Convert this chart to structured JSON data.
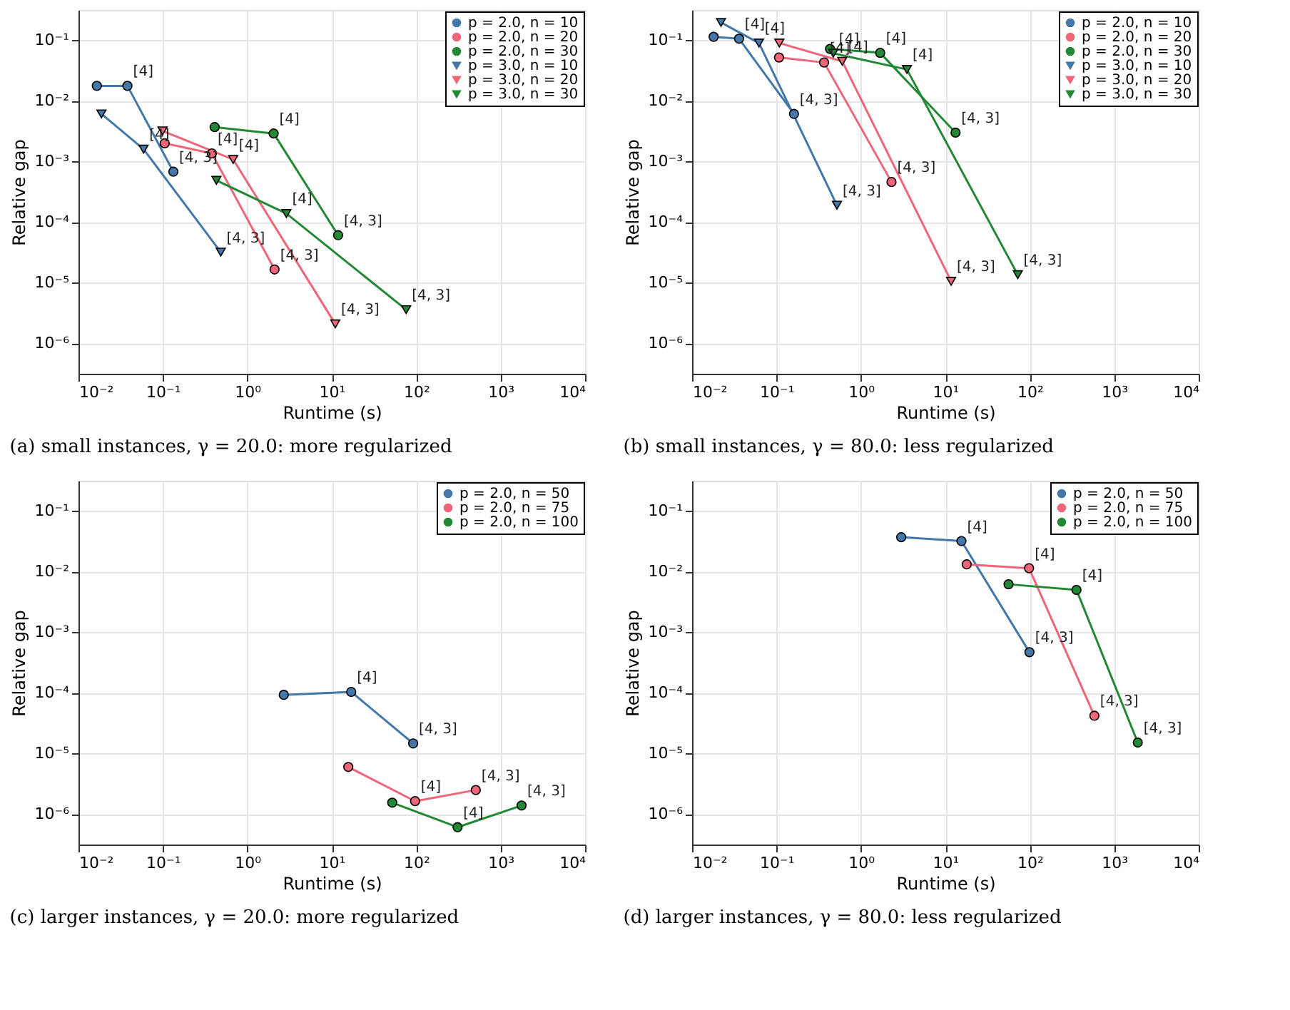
{
  "chart_data": [
    {
      "type": "line",
      "title": "(a) small instances, γ = 20.0: more regularized",
      "xlabel": "Runtime (s)",
      "ylabel": "Relative gap",
      "log": "xy",
      "grid": true,
      "legend": "top right",
      "xlim": [
        0.01,
        10000
      ],
      "ylim": [
        3.16e-07,
        0.316
      ],
      "xticks": [
        {
          "value": 0.01,
          "label": "10⁻²"
        },
        {
          "value": 0.1,
          "label": "10⁻¹"
        },
        {
          "value": 1,
          "label": "10⁰"
        },
        {
          "value": 10,
          "label": "10¹"
        },
        {
          "value": 100,
          "label": "10²"
        },
        {
          "value": 1000,
          "label": "10³"
        },
        {
          "value": 10000,
          "label": "10⁴"
        }
      ],
      "yticks": [
        {
          "value": 1e-06,
          "label": "10⁻⁶"
        },
        {
          "value": 1e-05,
          "label": "10⁻⁵"
        },
        {
          "value": 0.0001,
          "label": "10⁻⁴"
        },
        {
          "value": 0.001,
          "label": "10⁻³"
        },
        {
          "value": 0.01,
          "label": "10⁻²"
        },
        {
          "value": 0.1,
          "label": "10⁻¹"
        }
      ],
      "series": [
        {
          "name": "p = 2.0, n = 10",
          "color": "#4477aa",
          "marker": "circle",
          "x": [
            0.0165,
            0.038,
            0.133
          ],
          "values": [
            0.0177,
            0.0177,
            0.00068
          ]
        },
        {
          "name": "p = 2.0, n = 20",
          "color": "#ee6677",
          "marker": "circle",
          "x": [
            0.105,
            0.38,
            2.1
          ],
          "values": [
            0.002,
            0.00136,
            1.66e-05
          ]
        },
        {
          "name": "p = 2.0, n = 30",
          "color": "#228833",
          "marker": "circle",
          "x": [
            0.41,
            2.05,
            11.9
          ],
          "values": [
            0.0037,
            0.0029,
            6.1e-05
          ]
        },
        {
          "name": "p = 3.0, n = 10",
          "color": "#4477aa",
          "marker": "triangle",
          "x": [
            0.0187,
            0.059,
            0.485
          ],
          "values": [
            0.0061,
            0.0016,
            3.2e-05
          ]
        },
        {
          "name": "p = 3.0, n = 20",
          "color": "#ee6677",
          "marker": "triangle",
          "x": [
            0.099,
            0.68,
            11
          ],
          "values": [
            0.0032,
            0.00108,
            2.1e-06
          ]
        },
        {
          "name": "p = 3.0, n = 30",
          "color": "#228833",
          "marker": "triangle",
          "x": [
            0.43,
            2.9,
            76
          ],
          "values": [
            0.00049,
            0.000139,
            3.6e-06
          ]
        }
      ],
      "annotations": [
        {
          "text": "[4]",
          "x": 0.038,
          "y": 0.0177
        },
        {
          "text": "[4, 3]",
          "x": 0.133,
          "y": 0.00068
        },
        {
          "text": "[4]",
          "x": 0.38,
          "y": 0.00136
        },
        {
          "text": "[4, 3]",
          "x": 2.1,
          "y": 1.66e-05
        },
        {
          "text": "[4]",
          "x": 2.05,
          "y": 0.0029
        },
        {
          "text": "[4, 3]",
          "x": 11.9,
          "y": 6.1e-05
        },
        {
          "text": "[4]",
          "x": 0.059,
          "y": 0.0016
        },
        {
          "text": "[4, 3]",
          "x": 0.485,
          "y": 3.2e-05
        },
        {
          "text": "[4]",
          "x": 0.68,
          "y": 0.00108
        },
        {
          "text": "[4, 3]",
          "x": 11,
          "y": 2.1e-06
        },
        {
          "text": "[4]",
          "x": 2.9,
          "y": 0.000139
        },
        {
          "text": "[4, 3]",
          "x": 76,
          "y": 3.6e-06
        }
      ]
    },
    {
      "type": "line",
      "title": "(b) small instances, γ = 80.0: less regularized",
      "xlabel": "Runtime (s)",
      "ylabel": "Relative gap",
      "log": "xy",
      "grid": true,
      "legend": "top right",
      "xlim": [
        0.01,
        10000
      ],
      "ylim": [
        3.16e-07,
        0.316
      ],
      "xticks": [
        {
          "value": 0.01,
          "label": "10⁻²"
        },
        {
          "value": 0.1,
          "label": "10⁻¹"
        },
        {
          "value": 1,
          "label": "10⁰"
        },
        {
          "value": 10,
          "label": "10¹"
        },
        {
          "value": 100,
          "label": "10²"
        },
        {
          "value": 1000,
          "label": "10³"
        },
        {
          "value": 10000,
          "label": "10⁴"
        }
      ],
      "yticks": [
        {
          "value": 1e-06,
          "label": "10⁻⁶"
        },
        {
          "value": 1e-05,
          "label": "10⁻⁵"
        },
        {
          "value": 0.0001,
          "label": "10⁻⁴"
        },
        {
          "value": 0.001,
          "label": "10⁻³"
        },
        {
          "value": 0.01,
          "label": "10⁻²"
        },
        {
          "value": 0.1,
          "label": "10⁻¹"
        }
      ],
      "series": [
        {
          "name": "p = 2.0, n = 10",
          "color": "#4477aa",
          "marker": "circle",
          "x": [
            0.018,
            0.036,
            0.161
          ],
          "values": [
            0.114,
            0.106,
            0.0061
          ]
        },
        {
          "name": "p = 2.0, n = 20",
          "color": "#ee6677",
          "marker": "circle",
          "x": [
            0.107,
            0.366,
            2.3
          ],
          "values": [
            0.052,
            0.043,
            0.00046
          ]
        },
        {
          "name": "p = 2.0, n = 30",
          "color": "#228833",
          "marker": "circle",
          "x": [
            0.43,
            1.69,
            13.2
          ],
          "values": [
            0.072,
            0.062,
            0.003
          ]
        },
        {
          "name": "p = 3.0, n = 10",
          "color": "#4477aa",
          "marker": "triangle",
          "x": [
            0.022,
            0.062,
            0.52
          ],
          "values": [
            0.197,
            0.09,
            0.00019
          ]
        },
        {
          "name": "p = 3.0, n = 20",
          "color": "#ee6677",
          "marker": "triangle",
          "x": [
            0.108,
            0.6,
            11.7
          ],
          "values": [
            0.09,
            0.045,
            1.06e-05
          ]
        },
        {
          "name": "p = 3.0, n = 30",
          "color": "#228833",
          "marker": "triangle",
          "x": [
            0.47,
            3.5,
            72
          ],
          "values": [
            0.061,
            0.033,
            1.36e-05
          ]
        }
      ],
      "annotations": [
        {
          "text": "[4]",
          "x": 0.036,
          "y": 0.106
        },
        {
          "text": "[4, 3]",
          "x": 0.161,
          "y": 0.0061
        },
        {
          "text": "[4]",
          "x": 0.366,
          "y": 0.043
        },
        {
          "text": "[4, 3]",
          "x": 2.3,
          "y": 0.00046
        },
        {
          "text": "[4]",
          "x": 1.69,
          "y": 0.062
        },
        {
          "text": "[4, 3]",
          "x": 13.2,
          "y": 0.003
        },
        {
          "text": "[4]",
          "x": 0.062,
          "y": 0.09
        },
        {
          "text": "[4, 3]",
          "x": 0.52,
          "y": 0.00019
        },
        {
          "text": "[4]",
          "x": 0.6,
          "y": 0.045
        },
        {
          "text": "[4, 3]",
          "x": 11.7,
          "y": 1.06e-05
        },
        {
          "text": "[4]",
          "x": 0.47,
          "y": 0.061
        },
        {
          "text": "[4]",
          "x": 3.5,
          "y": 0.033
        },
        {
          "text": "[4, 3]",
          "x": 72,
          "y": 1.36e-05
        }
      ]
    },
    {
      "type": "line",
      "title": "(c) larger instances, γ = 20.0: more regularized",
      "xlabel": "Runtime (s)",
      "ylabel": "Relative gap",
      "log": "xy",
      "grid": true,
      "legend": "top right",
      "xlim": [
        0.01,
        10000
      ],
      "ylim": [
        3.16e-07,
        0.316
      ],
      "xticks": [
        {
          "value": 0.01,
          "label": "10⁻²"
        },
        {
          "value": 0.1,
          "label": "10⁻¹"
        },
        {
          "value": 1,
          "label": "10⁰"
        },
        {
          "value": 10,
          "label": "10¹"
        },
        {
          "value": 100,
          "label": "10²"
        },
        {
          "value": 1000,
          "label": "10³"
        },
        {
          "value": 10000,
          "label": "10⁴"
        }
      ],
      "yticks": [
        {
          "value": 1e-06,
          "label": "10⁻⁶"
        },
        {
          "value": 1e-05,
          "label": "10⁻⁵"
        },
        {
          "value": 0.0001,
          "label": "10⁻⁴"
        },
        {
          "value": 0.001,
          "label": "10⁻³"
        },
        {
          "value": 0.01,
          "label": "10⁻²"
        },
        {
          "value": 0.1,
          "label": "10⁻¹"
        }
      ],
      "series": [
        {
          "name": "p = 2.0, n = 50",
          "color": "#4477aa",
          "marker": "circle",
          "x": [
            2.7,
            17,
            92
          ],
          "values": [
            9.3e-05,
            0.000104,
            1.47e-05
          ]
        },
        {
          "name": "p = 2.0, n = 75",
          "color": "#ee6677",
          "marker": "circle",
          "x": [
            15.7,
            97,
            508
          ],
          "values": [
            6e-06,
            1.64e-06,
            2.5e-06
          ]
        },
        {
          "name": "p = 2.0, n = 100",
          "color": "#228833",
          "marker": "circle",
          "x": [
            52,
            309,
            1770
          ],
          "values": [
            1.55e-06,
            6.1e-07,
            1.39e-06
          ]
        }
      ],
      "annotations": [
        {
          "text": "[4]",
          "x": 17,
          "y": 0.000104
        },
        {
          "text": "[4, 3]",
          "x": 92,
          "y": 1.47e-05
        },
        {
          "text": "[4]",
          "x": 97,
          "y": 1.64e-06
        },
        {
          "text": "[4, 3]",
          "x": 508,
          "y": 2.5e-06
        },
        {
          "text": "[4]",
          "x": 309,
          "y": 6.1e-07
        },
        {
          "text": "[4, 3]",
          "x": 1770,
          "y": 1.39e-06
        }
      ]
    },
    {
      "type": "line",
      "title": "(d) larger instances, γ = 80.0: less regularized",
      "xlabel": "Runtime (s)",
      "ylabel": "Relative gap",
      "log": "xy",
      "grid": true,
      "legend": "top right",
      "xlim": [
        0.01,
        10000
      ],
      "ylim": [
        3.16e-07,
        0.316
      ],
      "xticks": [
        {
          "value": 0.01,
          "label": "10⁻²"
        },
        {
          "value": 0.1,
          "label": "10⁻¹"
        },
        {
          "value": 1,
          "label": "10⁰"
        },
        {
          "value": 10,
          "label": "10¹"
        },
        {
          "value": 100,
          "label": "10²"
        },
        {
          "value": 1000,
          "label": "10³"
        },
        {
          "value": 10000,
          "label": "10⁴"
        }
      ],
      "yticks": [
        {
          "value": 1e-06,
          "label": "10⁻⁶"
        },
        {
          "value": 1e-05,
          "label": "10⁻⁵"
        },
        {
          "value": 0.0001,
          "label": "10⁻⁴"
        },
        {
          "value": 0.001,
          "label": "10⁻³"
        },
        {
          "value": 0.01,
          "label": "10⁻²"
        },
        {
          "value": 0.1,
          "label": "10⁻¹"
        }
      ],
      "series": [
        {
          "name": "p = 2.0, n = 50",
          "color": "#4477aa",
          "marker": "circle",
          "x": [
            3.0,
            15.5,
            99
          ],
          "values": [
            0.037,
            0.032,
            0.00047
          ]
        },
        {
          "name": "p = 2.0, n = 75",
          "color": "#ee6677",
          "marker": "circle",
          "x": [
            17.9,
            98,
            582
          ],
          "values": [
            0.0132,
            0.0114,
            4.2e-05
          ]
        },
        {
          "name": "p = 2.0, n = 100",
          "color": "#228833",
          "marker": "circle",
          "x": [
            56,
            357,
            1900
          ],
          "values": [
            0.0062,
            0.005,
            1.52e-05
          ]
        }
      ],
      "annotations": [
        {
          "text": "[4]",
          "x": 15.5,
          "y": 0.032
        },
        {
          "text": "[4, 3]",
          "x": 99,
          "y": 0.00047
        },
        {
          "text": "[4]",
          "x": 98,
          "y": 0.0114
        },
        {
          "text": "[4, 3]",
          "x": 582,
          "y": 4.2e-05
        },
        {
          "text": "[4]",
          "x": 357,
          "y": 0.005
        },
        {
          "text": "[4, 3]",
          "x": 1900,
          "y": 1.52e-05
        }
      ]
    }
  ]
}
